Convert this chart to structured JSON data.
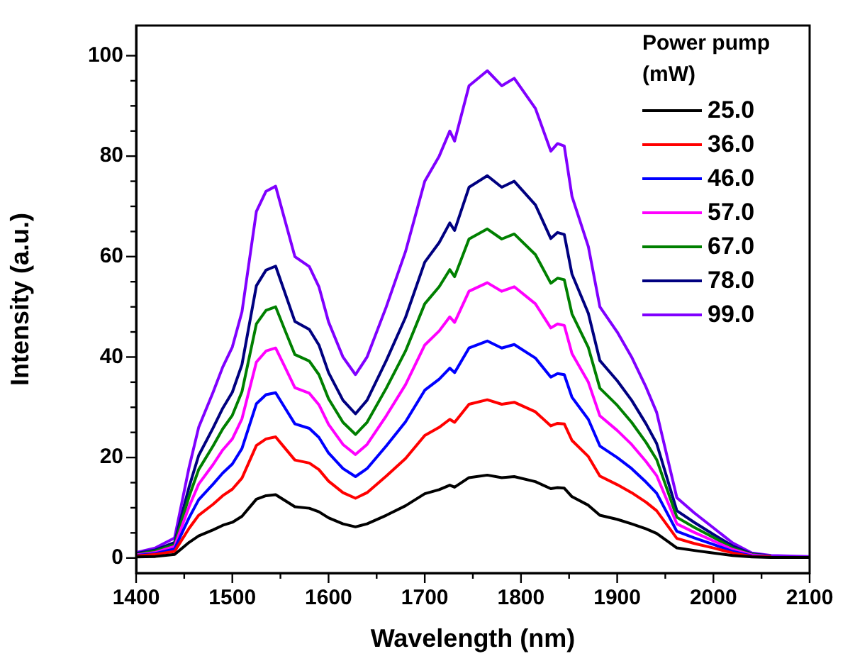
{
  "chart_data": {
    "type": "line",
    "xlabel": "Wavelength (nm)",
    "ylabel": "Intensity (a.u.)",
    "legend_title": "Power pump (mW)",
    "legend": "top right",
    "grid": false,
    "marker": "none",
    "line_style": "solid",
    "x": [
      1400,
      1420,
      1440,
      1455,
      1465,
      1480,
      1490,
      1500,
      1510,
      1525,
      1535,
      1545,
      1555,
      1565,
      1580,
      1590,
      1600,
      1615,
      1628,
      1640,
      1660,
      1680,
      1700,
      1715,
      1726,
      1731,
      1746,
      1765,
      1780,
      1793,
      1815,
      1831,
      1838,
      1845,
      1853,
      1870,
      1882,
      1900,
      1915,
      1930,
      1941,
      1962,
      1980,
      2000,
      2020,
      2040,
      2060,
      2080,
      2100
    ],
    "xlim": [
      1400,
      2100
    ],
    "ylim": [
      -3,
      106
    ],
    "xticks": [
      1400,
      {
        "value": 1450,
        "label": null
      },
      1500,
      {
        "value": 1550,
        "label": null
      },
      1600,
      {
        "value": 1650,
        "label": null
      },
      1700,
      {
        "value": 1750,
        "label": null
      },
      1800,
      {
        "value": 1850,
        "label": null
      },
      1900,
      {
        "value": 1950,
        "label": null
      },
      2000,
      {
        "value": 2050,
        "label": null
      },
      2100
    ],
    "yticks": [
      0,
      {
        "value": 5,
        "label": null
      },
      {
        "value": 10,
        "label": null
      },
      {
        "value": 15,
        "label": null
      },
      20,
      {
        "value": 25,
        "label": null
      },
      {
        "value": 30,
        "label": null
      },
      {
        "value": 35,
        "label": null
      },
      40,
      {
        "value": 45,
        "label": null
      },
      {
        "value": 50,
        "label": null
      },
      {
        "value": 55,
        "label": null
      },
      60,
      {
        "value": 65,
        "label": null
      },
      {
        "value": 70,
        "label": null
      },
      {
        "value": 75,
        "label": null
      },
      80,
      {
        "value": 85,
        "label": null
      },
      {
        "value": 90,
        "label": null
      },
      {
        "value": 95,
        "label": null
      },
      100
    ],
    "series": [
      {
        "name": "25.0",
        "color": "#000000",
        "values": [
          0.2,
          0.3,
          0.7,
          3.1,
          4.4,
          5.6,
          6.5,
          7.1,
          8.3,
          11.7,
          12.4,
          12.6,
          11.4,
          10.2,
          9.9,
          9.2,
          8,
          6.8,
          6.2,
          6.8,
          8.5,
          10.4,
          12.8,
          13.6,
          14.5,
          14.1,
          16,
          16.5,
          16,
          16.2,
          15.2,
          13.8,
          14,
          13.9,
          12.2,
          10.5,
          8.5,
          7.7,
          6.8,
          5.8,
          4.9,
          2,
          1.5,
          1,
          0.5,
          0.2,
          0.1,
          0.1,
          0.1
        ]
      },
      {
        "name": "36.0",
        "color": "#ff0000",
        "values": [
          0.4,
          0.7,
          1.3,
          5.9,
          8.5,
          10.7,
          12.4,
          13.7,
          15.9,
          22.4,
          23.7,
          24.1,
          21.8,
          19.5,
          18.9,
          17.6,
          15.3,
          13,
          11.9,
          13,
          16.3,
          19.8,
          24.4,
          26,
          27.6,
          27,
          30.6,
          31.5,
          30.6,
          31,
          29.1,
          26.3,
          26.8,
          26.7,
          23.4,
          20.2,
          16.3,
          14.6,
          13,
          11.1,
          9.4,
          3.9,
          2.9,
          2,
          1,
          0.3,
          0.2,
          null,
          null
        ]
      },
      {
        "name": "46.0",
        "color": "#0000ff",
        "values": [
          0.5,
          0.9,
          1.8,
          8,
          11.6,
          14.7,
          16.9,
          18.7,
          21.8,
          30.7,
          32.5,
          32.9,
          29.8,
          26.7,
          25.8,
          24,
          20.9,
          17.8,
          16.2,
          17.8,
          22.3,
          27.1,
          33.4,
          35.6,
          37.8,
          36.9,
          41.8,
          43.2,
          41.8,
          42.5,
          39.8,
          36,
          36.7,
          36.5,
          32,
          27.6,
          22.3,
          20,
          17.8,
          15.1,
          12.9,
          5.3,
          4,
          2.7,
          1.3,
          0.4,
          0.2,
          null,
          null
        ]
      },
      {
        "name": "57.0",
        "color": "#ff00ff",
        "values": [
          0.6,
          1.1,
          2.3,
          10.2,
          14.7,
          18.6,
          21.5,
          23.7,
          27.7,
          39,
          41.2,
          41.8,
          37.9,
          33.9,
          32.8,
          30.5,
          26.6,
          22.6,
          20.6,
          22.6,
          28.3,
          34.5,
          42.4,
          45.2,
          48,
          46.9,
          53.1,
          54.8,
          53.1,
          54,
          50.6,
          45.8,
          46.6,
          46.3,
          40.7,
          35,
          28.3,
          25.4,
          22.6,
          19.2,
          16.4,
          6.8,
          5.1,
          3.4,
          1.7,
          0.6,
          0.3,
          null,
          null
        ]
      },
      {
        "name": "67.0",
        "color": "#008000",
        "values": [
          0.7,
          1.4,
          2.7,
          12.2,
          17.6,
          22.3,
          25.7,
          28.4,
          33.1,
          46.6,
          49.3,
          50,
          45.2,
          40.5,
          39.2,
          36.5,
          31.7,
          27,
          24.6,
          27,
          33.8,
          41.2,
          50.6,
          54,
          57.4,
          56,
          63.5,
          65.5,
          63.5,
          64.5,
          60.4,
          54.7,
          55.7,
          55.4,
          48.6,
          41.9,
          33.8,
          30.4,
          27,
          23,
          19.6,
          8.1,
          6.1,
          4.1,
          2,
          0.7,
          0.3,
          null,
          null
        ]
      },
      {
        "name": "78.0",
        "color": "#000080",
        "values": [
          0.9,
          1.6,
          3.1,
          14.1,
          20.4,
          25.9,
          29.8,
          33,
          38.5,
          54.2,
          57.3,
          58.1,
          52.6,
          47.1,
          45.5,
          42.4,
          36.9,
          31.4,
          28.7,
          31.4,
          39.3,
          47.9,
          58.9,
          62.8,
          66.7,
          65.2,
          73.8,
          76.1,
          73.8,
          75,
          70.3,
          63.6,
          64.8,
          64.4,
          56.5,
          48.7,
          39.3,
          35.3,
          31.4,
          26.7,
          22.8,
          9.4,
          7.1,
          4.7,
          2.4,
          0.8,
          0.4,
          null,
          null
        ]
      },
      {
        "name": "99.0",
        "color": "#8000ff",
        "values": [
          1.1,
          2,
          4,
          18,
          26,
          33,
          38,
          42,
          49,
          69,
          73,
          74,
          67,
          60,
          58,
          54,
          47,
          40,
          36.5,
          40,
          50,
          61,
          75,
          80,
          85,
          83,
          94,
          97,
          94,
          95.5,
          89.5,
          81,
          82.5,
          82,
          72,
          62,
          50,
          45,
          40,
          34,
          29,
          12,
          9,
          6,
          3,
          1,
          0.5,
          0.4,
          0.3
        ]
      }
    ]
  }
}
